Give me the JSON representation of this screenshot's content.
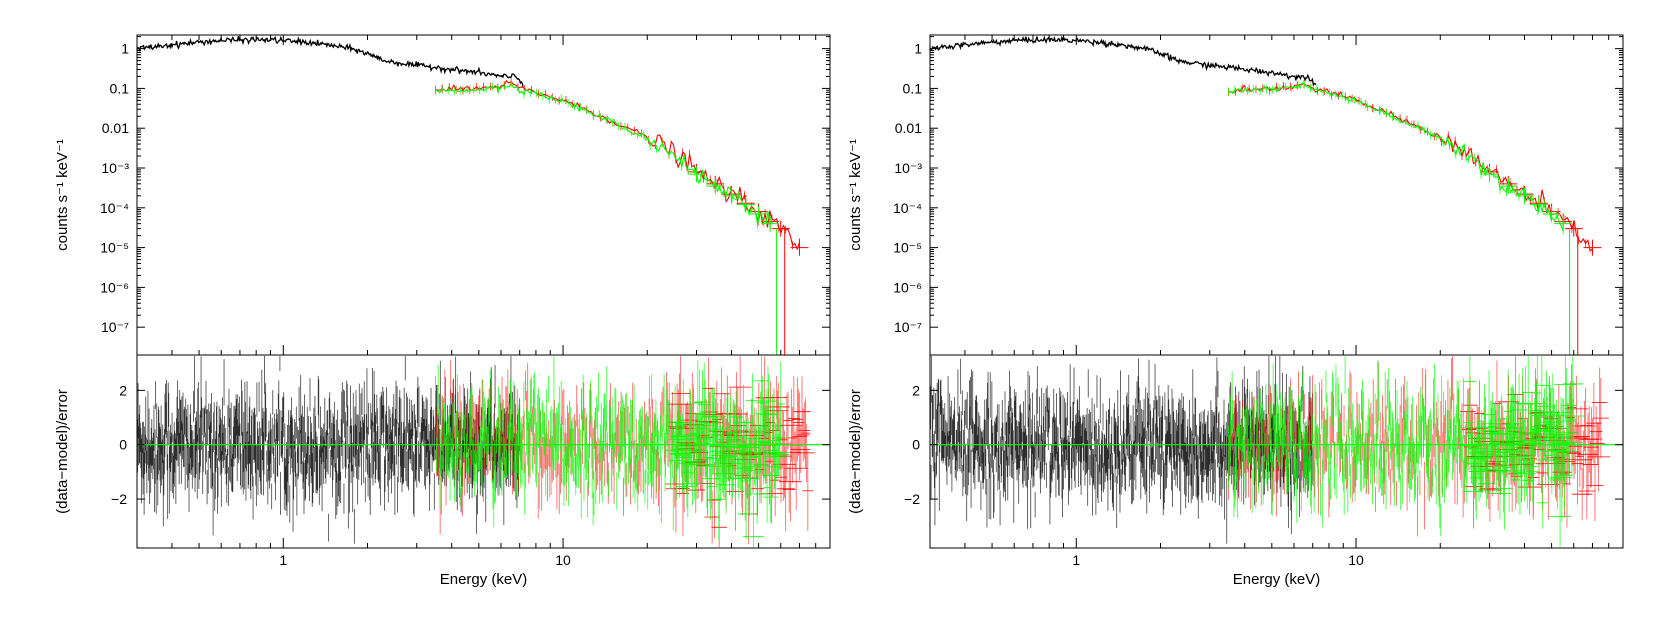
{
  "figure": {
    "description_free": true,
    "colors": {
      "black": "#000000",
      "red": "#ff0000",
      "green": "#00ff00",
      "frame": "#000000"
    }
  },
  "chart_data": [
    {
      "type": "scatter",
      "panel": "left",
      "top": {
        "ylabel": "counts s⁻¹ keV⁻¹",
        "yscale": "log",
        "ylim": [
          2e-08,
          2.2
        ],
        "yticks": [
          {
            "value": 1,
            "label": "1"
          },
          {
            "value": 0.1,
            "label": "0.1"
          },
          {
            "value": 0.01,
            "label": "0.01"
          },
          {
            "value": 0.001,
            "label": "10⁻³"
          },
          {
            "value": 0.0001,
            "label": "10⁻⁴"
          },
          {
            "value": 1e-05,
            "label": "10⁻⁵"
          },
          {
            "value": 1e-06,
            "label": "10⁻⁶"
          },
          {
            "value": 1e-07,
            "label": "10⁻⁷"
          }
        ],
        "series": [
          {
            "color": "#000000",
            "x": [
              0.3,
              0.4,
              0.5,
              0.6,
              0.7,
              0.8,
              0.9,
              1.0,
              1.2,
              1.5,
              1.8,
              2.0,
              2.3,
              2.5,
              3.0,
              3.5,
              4.0,
              5.0,
              6.0,
              6.4,
              6.7,
              7.0,
              7.2
            ],
            "y": [
              1.0,
              1.25,
              1.45,
              1.6,
              1.65,
              1.68,
              1.65,
              1.6,
              1.45,
              1.2,
              0.95,
              0.75,
              0.5,
              0.45,
              0.38,
              0.34,
              0.3,
              0.25,
              0.2,
              0.19,
              0.22,
              0.16,
              0.13
            ]
          },
          {
            "color": "#ff0000",
            "x": [
              3.5,
              4.0,
              5.0,
              6.0,
              6.5,
              7.0,
              8.0,
              10.0,
              12.0,
              15.0,
              20.0,
              25.0,
              30.0,
              35.0,
              40.0,
              45.0,
              50.0,
              55.0,
              60.0,
              70.0
            ],
            "y": [
              0.09,
              0.095,
              0.1,
              0.11,
              0.14,
              0.1,
              0.08,
              0.05,
              0.03,
              0.015,
              0.006,
              0.0025,
              0.0008,
              0.0004,
              0.00022,
              0.00013,
              8e-05,
              4.5e-05,
              3e-05,
              1e-05
            ]
          },
          {
            "color": "#00ff00",
            "x": [
              3.5,
              4.0,
              5.0,
              6.0,
              6.5,
              7.0,
              8.0,
              10.0,
              12.0,
              15.0,
              20.0,
              25.0,
              30.0,
              35.0,
              40.0,
              45.0,
              50.0,
              55.0
            ],
            "y": [
              0.085,
              0.09,
              0.095,
              0.105,
              0.13,
              0.095,
              0.075,
              0.047,
              0.028,
              0.014,
              0.0055,
              0.0023,
              0.0007,
              0.00035,
              0.0002,
              0.00012,
              7e-05,
              4e-05
            ]
          }
        ]
      },
      "bottom": {
        "ylabel": "(data−model)/error",
        "ylim": [
          -3.8,
          3.3
        ],
        "yticks": [
          {
            "value": 2,
            "label": "2"
          },
          {
            "value": 0,
            "label": "0"
          },
          {
            "value": -2,
            "label": "−2"
          }
        ]
      },
      "xlabel": "Energy (keV)",
      "xscale": "log",
      "xlim": [
        0.3,
        90
      ],
      "xticks": [
        {
          "value": 1,
          "label": "1"
        },
        {
          "value": 10,
          "label": "10"
        }
      ]
    },
    {
      "type": "scatter",
      "panel": "right",
      "top": {
        "ylabel": "counts s⁻¹ keV⁻¹",
        "yscale": "log",
        "ylim": [
          2e-08,
          2.2
        ],
        "yticks": [
          {
            "value": 1,
            "label": "1"
          },
          {
            "value": 0.1,
            "label": "0.1"
          },
          {
            "value": 0.01,
            "label": "0.01"
          },
          {
            "value": 0.001,
            "label": "10⁻³"
          },
          {
            "value": 0.0001,
            "label": "10⁻⁴"
          },
          {
            "value": 1e-05,
            "label": "10⁻⁵"
          },
          {
            "value": 1e-06,
            "label": "10⁻⁶"
          },
          {
            "value": 1e-07,
            "label": "10⁻⁷"
          }
        ],
        "series": [
          {
            "color": "#000000",
            "x": [
              0.3,
              0.4,
              0.5,
              0.6,
              0.7,
              0.8,
              0.9,
              1.0,
              1.2,
              1.5,
              1.8,
              2.0,
              2.3,
              2.5,
              3.0,
              3.5,
              4.0,
              5.0,
              6.0,
              6.4,
              6.7,
              7.0,
              7.2
            ],
            "y": [
              1.0,
              1.25,
              1.45,
              1.6,
              1.65,
              1.68,
              1.65,
              1.6,
              1.45,
              1.2,
              0.95,
              0.75,
              0.5,
              0.45,
              0.38,
              0.34,
              0.3,
              0.25,
              0.2,
              0.19,
              0.21,
              0.15,
              0.12
            ]
          },
          {
            "color": "#ff0000",
            "x": [
              3.5,
              4.0,
              5.0,
              6.0,
              6.5,
              7.0,
              8.0,
              10.0,
              12.0,
              15.0,
              20.0,
              25.0,
              30.0,
              35.0,
              40.0,
              45.0,
              50.0,
              55.0,
              60.0,
              70.0
            ],
            "y": [
              0.09,
              0.095,
              0.1,
              0.11,
              0.13,
              0.1,
              0.08,
              0.05,
              0.03,
              0.015,
              0.006,
              0.0025,
              0.0008,
              0.0004,
              0.00022,
              0.00013,
              8e-05,
              4.5e-05,
              3e-05,
              1e-05
            ]
          },
          {
            "color": "#00ff00",
            "x": [
              3.5,
              4.0,
              5.0,
              6.0,
              6.5,
              7.0,
              8.0,
              10.0,
              12.0,
              15.0,
              20.0,
              25.0,
              30.0,
              35.0,
              40.0,
              45.0,
              50.0,
              55.0
            ],
            "y": [
              0.085,
              0.09,
              0.095,
              0.105,
              0.12,
              0.095,
              0.075,
              0.047,
              0.028,
              0.014,
              0.0055,
              0.0023,
              0.0007,
              0.00035,
              0.0002,
              0.00012,
              7e-05,
              4e-05
            ]
          }
        ]
      },
      "bottom": {
        "ylabel": "(data−model)/error",
        "ylim": [
          -3.8,
          3.3
        ],
        "yticks": [
          {
            "value": 2,
            "label": "2"
          },
          {
            "value": 0,
            "label": "0"
          },
          {
            "value": -2,
            "label": "−2"
          }
        ]
      },
      "xlabel": "Energy (keV)",
      "xscale": "log",
      "xlim": [
        0.3,
        90
      ],
      "xticks": [
        {
          "value": 1,
          "label": "1"
        },
        {
          "value": 10,
          "label": "10"
        }
      ]
    }
  ]
}
